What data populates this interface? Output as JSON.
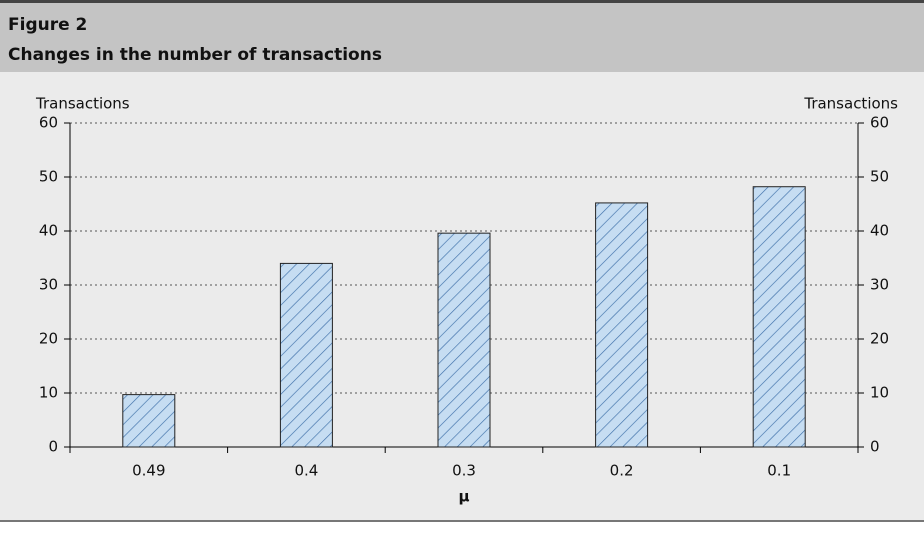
{
  "figure_label": "Figure 2",
  "chart_data": {
    "type": "bar",
    "title": "Changes in the number of transactions",
    "y_label": "Transactions",
    "y2_label": "Transactions",
    "x_label": "μ",
    "categories": [
      "0.49",
      "0.4",
      "0.3",
      "0.2",
      "0.1"
    ],
    "values": [
      9.7,
      34,
      39.6,
      45.2,
      48.2
    ],
    "color": "#c6ddf2",
    "hatch_color": "#3d6fa8",
    "ylim": [
      0,
      60
    ],
    "yticks": [
      0,
      10,
      20,
      30,
      40,
      50,
      60
    ],
    "y2lim": [
      0,
      60
    ],
    "y2ticks": [
      0,
      10,
      20,
      30,
      40,
      50,
      60
    ],
    "grid": true
  }
}
